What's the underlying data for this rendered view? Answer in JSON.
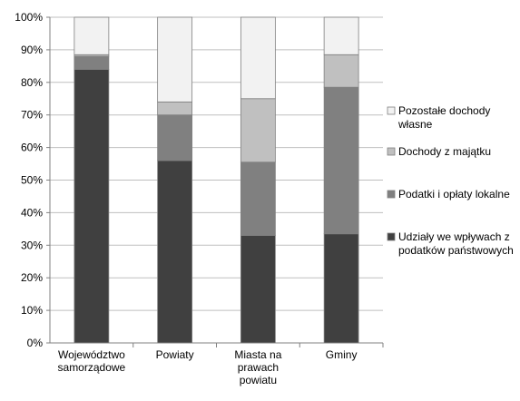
{
  "chart_data": {
    "type": "bar",
    "stacked": true,
    "percent": true,
    "categories": [
      [
        "Województwo",
        "samorządowe"
      ],
      [
        "Powiaty"
      ],
      [
        "Miasta na",
        "prawach",
        "powiatu"
      ],
      [
        "Gminy"
      ]
    ],
    "series": [
      {
        "name": [
          "Udziały we wpływach z",
          "podatków państwowych"
        ],
        "color": "#404040",
        "values": [
          84,
          56,
          33,
          33.5
        ]
      },
      {
        "name": [
          "Podatki i opłaty lokalne"
        ],
        "color": "#808080",
        "values": [
          4,
          14,
          22.5,
          45
        ]
      },
      {
        "name": [
          "Dochody z majątku"
        ],
        "color": "#c0c0c0",
        "values": [
          0.5,
          4,
          19.5,
          10
        ]
      },
      {
        "name": [
          "Pozostałe dochody",
          "własne"
        ],
        "color": "#f2f2f2",
        "values": [
          11.5,
          26,
          25,
          11.5
        ]
      }
    ],
    "ylim": [
      0,
      100
    ],
    "yticks": [
      "0%",
      "10%",
      "20%",
      "30%",
      "40%",
      "50%",
      "60%",
      "70%",
      "80%",
      "90%",
      "100%"
    ],
    "grid": true,
    "legend_position": "right",
    "legend_order": [
      3,
      2,
      1,
      0
    ]
  }
}
